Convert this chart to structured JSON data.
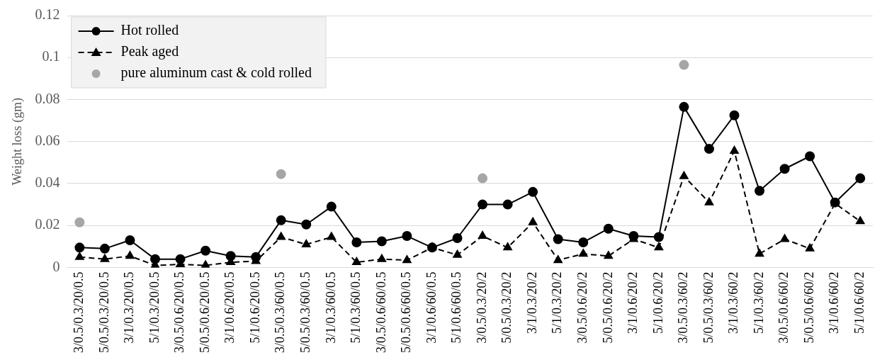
{
  "chart_data": {
    "type": "line",
    "ylabel": "Weight loss (gm)",
    "categories": [
      "3/0.5/0.3/20/0.5",
      "5/0.5/0.3/20/0.5",
      "3/1/0.3/20/0.5",
      "5/1/0.3/20/0.5",
      "3/0.5/0.6/20/0.5",
      "5/0.5/0.6/20/0.5",
      "3/1/0.6/20/0.5",
      "5/1/0.6/20/0.5",
      "3/0.5/0.3/60/0.5",
      "5/0.5/0.3/60/0.5",
      "3/1/0.3/60/0.5",
      "5/1/0.3/60/0.5",
      "3/0.5/0.6/60/0.5",
      "5/0.5/0.6/60/0.5",
      "3/1/0.6/60/0.5",
      "5/1/0.6/60/0.5",
      "3/0.5/0.3/20/2",
      "5/0.5/0.3/20/2",
      "3/1/0.3/20/2",
      "5/1/0.3/20/2",
      "3/0.5/0.6/20/2",
      "5/0.5/0.6/20/2",
      "3/1/0.6/20/2",
      "5/1/0.6/20/2",
      "3/0.5/0.3/60/2",
      "5/0.5/0.3/60/2",
      "3/1/0.3/60/2",
      "5/1/0.3/60/2",
      "3/0.5/0.6/60/2",
      "5/0.5/0.6/60/2",
      "3/1/0.6/60/2",
      "5/1/0.6/60/2"
    ],
    "series": [
      {
        "name": "Hot rolled",
        "color": "#000000",
        "marker": "circle",
        "line_style": "solid",
        "values": [
          0.0095,
          0.009,
          0.013,
          0.004,
          0.004,
          0.008,
          0.0055,
          0.005,
          0.0225,
          0.0205,
          0.029,
          0.012,
          0.0125,
          0.015,
          0.0095,
          0.014,
          0.03,
          0.03,
          0.036,
          0.0135,
          0.012,
          0.0185,
          0.015,
          0.0145,
          0.0765,
          0.0565,
          0.0725,
          0.0365,
          0.047,
          0.053,
          0.031,
          0.0425
        ]
      },
      {
        "name": "Peak aged",
        "color": "#000000",
        "marker": "triangle",
        "line_style": "dashed",
        "values": [
          0.005,
          0.004,
          0.0055,
          0.001,
          0.0015,
          0.001,
          0.0025,
          0.003,
          0.0145,
          0.011,
          0.0145,
          0.0025,
          0.004,
          0.0035,
          0.0095,
          0.006,
          0.015,
          0.0095,
          0.0215,
          0.0035,
          0.0065,
          0.0055,
          0.0135,
          0.0095,
          0.0435,
          0.031,
          0.0555,
          0.0065,
          0.0135,
          0.009,
          0.0305,
          0.022
        ]
      },
      {
        "name": "pure aluminum cast & cold rolled",
        "type": "scatter",
        "color": "#a6a6a6",
        "marker": "circle",
        "values": [
          0.0215,
          null,
          null,
          null,
          null,
          null,
          null,
          null,
          0.0445,
          null,
          null,
          null,
          null,
          null,
          null,
          null,
          0.0425,
          null,
          null,
          null,
          null,
          null,
          null,
          null,
          0.0965,
          null,
          null,
          null,
          null,
          null,
          null,
          null
        ]
      }
    ],
    "ylim": [
      0,
      0.12
    ],
    "yticks": [
      0,
      0.02,
      0.04,
      0.06,
      0.08,
      0.1,
      0.12
    ],
    "grid": "y",
    "legend": "top left"
  }
}
